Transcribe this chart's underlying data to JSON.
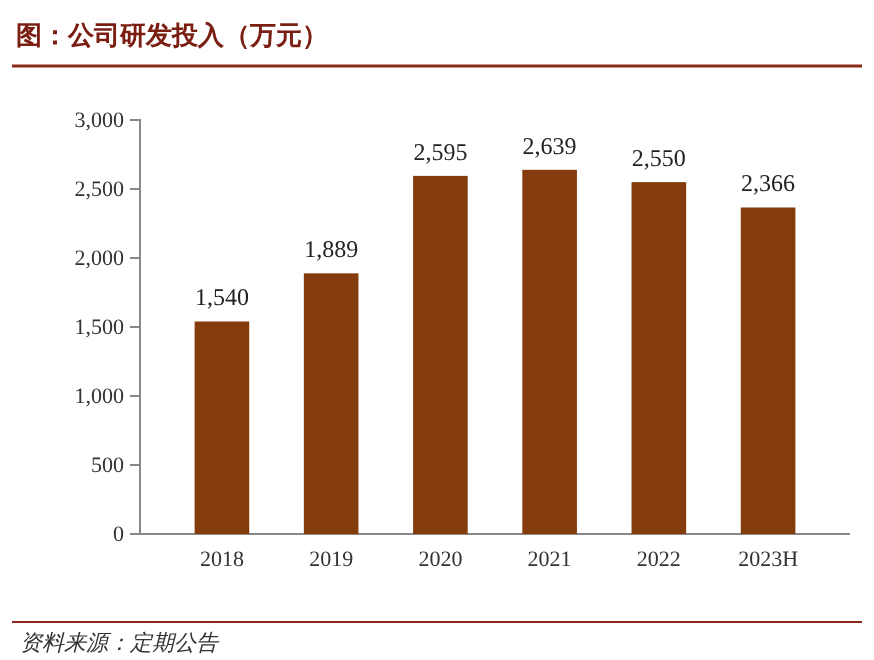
{
  "chart_data": {
    "type": "bar",
    "title": "图：公司研发投入（万元）",
    "categories": [
      "2018",
      "2019",
      "2020",
      "2021",
      "2022",
      "2023H"
    ],
    "values": [
      1540,
      1889,
      2595,
      2639,
      2550,
      2366
    ],
    "value_labels": [
      "1,540",
      "1,889",
      "2,595",
      "2,639",
      "2,550",
      "2,366"
    ],
    "color": "#843c0c",
    "ylim": [
      0,
      3000
    ],
    "yticks": [
      0,
      500,
      {
        "value": 1000,
        "label": "1,000"
      },
      {
        "value": 1500,
        "label": "1,500"
      },
      {
        "value": 2000,
        "label": "2,000"
      },
      {
        "value": 2500,
        "label": "2,500"
      },
      {
        "value": 3000,
        "label": "3,000"
      }
    ],
    "grid": false,
    "annotations": [
      "资料来源：定期公告"
    ]
  }
}
